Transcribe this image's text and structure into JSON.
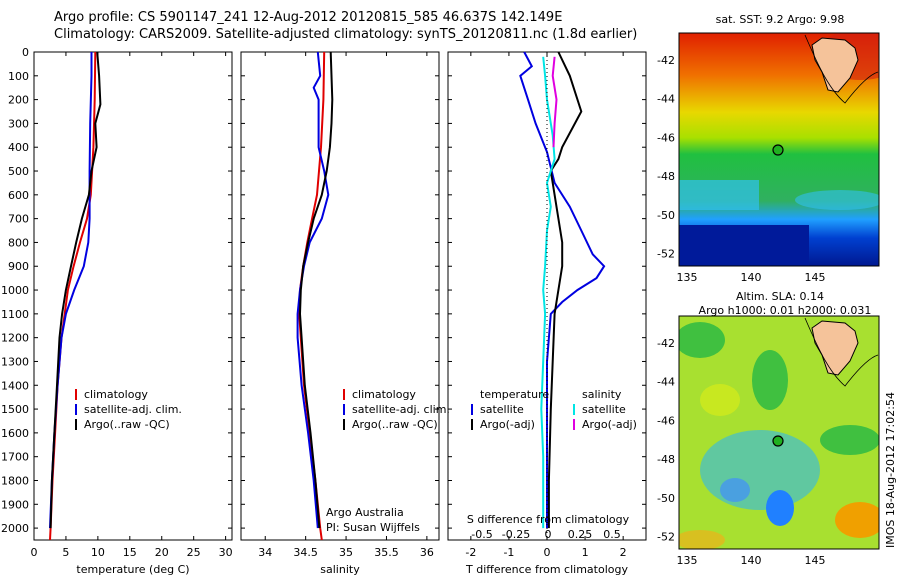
{
  "header": {
    "line1": "Argo profile: CS 5901147_241 12-Aug-2012 20120815_585 46.637S 142.149E",
    "line2": "Climatology: CARS2009. Satellite-adjusted climatology: synTS_20120811.nc (1.8d earlier)"
  },
  "colors": {
    "climatology": "#e00000",
    "satellite": "#0000e0",
    "argo": "#000000",
    "sat_sal": "#00e5e5",
    "argo_sal": "#e000e0"
  },
  "chart_data": [
    {
      "type": "line",
      "xlabel": "temperature (deg C)",
      "xlim": [
        0,
        31
      ],
      "ylim": [
        2050,
        0
      ],
      "xticks": [
        "0",
        "5",
        "10",
        "15",
        "20",
        "25",
        "30"
      ],
      "yticks": [
        "0",
        "100",
        "200",
        "300",
        "400",
        "500",
        "600",
        "700",
        "800",
        "900",
        "1000",
        "1100",
        "1200",
        "1300",
        "1400",
        "1500",
        "1600",
        "1700",
        "1800",
        "1900",
        "2000"
      ],
      "legend": [
        "climatology",
        "satellite-adj. clim.",
        "Argo(..raw -QC)"
      ],
      "series": [
        {
          "name": "climatology",
          "points": [
            [
              9.6,
              0
            ],
            [
              9.5,
              200
            ],
            [
              9.3,
              400
            ],
            [
              8.9,
              600
            ],
            [
              8.3,
              700
            ],
            [
              7.2,
              800
            ],
            [
              6.2,
              900
            ],
            [
              5.3,
              1000
            ],
            [
              4.8,
              1100
            ],
            [
              4.3,
              1200
            ],
            [
              3.7,
              1400
            ],
            [
              3.3,
              1600
            ],
            [
              2.9,
              1800
            ],
            [
              2.6,
              2000
            ],
            [
              2.5,
              2050
            ]
          ]
        },
        {
          "name": "satellite-adj. clim.",
          "points": [
            [
              9.0,
              0
            ],
            [
              9.0,
              100
            ],
            [
              8.8,
              300
            ],
            [
              8.7,
              500
            ],
            [
              8.7,
              700
            ],
            [
              8.5,
              800
            ],
            [
              7.8,
              900
            ],
            [
              6.3,
              1000
            ],
            [
              5.0,
              1100
            ],
            [
              4.3,
              1200
            ],
            [
              3.7,
              1400
            ],
            [
              3.2,
              1600
            ],
            [
              2.8,
              1800
            ],
            [
              2.5,
              2000
            ]
          ]
        },
        {
          "name": "Argo(..raw -QC)",
          "points": [
            [
              9.9,
              0
            ],
            [
              10.2,
              100
            ],
            [
              10.4,
              220
            ],
            [
              9.6,
              300
            ],
            [
              9.8,
              400
            ],
            [
              9.0,
              500
            ],
            [
              8.6,
              600
            ],
            [
              7.5,
              700
            ],
            [
              6.6,
              800
            ],
            [
              5.8,
              900
            ],
            [
              5.0,
              1000
            ],
            [
              4.4,
              1100
            ],
            [
              4.0,
              1200
            ],
            [
              3.6,
              1400
            ],
            [
              3.2,
              1600
            ],
            [
              2.8,
              1800
            ],
            [
              2.6,
              2000
            ]
          ]
        }
      ]
    },
    {
      "type": "line",
      "xlabel": "salinity",
      "xlim": [
        33.7,
        36.15
      ],
      "ylim": [
        2050,
        0
      ],
      "xticks": [
        "34",
        "34.5",
        "35",
        "35.5",
        "36"
      ],
      "legend": [
        "climatology",
        "satellite-adj. clim.",
        "Argo(..raw -QC)"
      ],
      "annotation": [
        "Argo Australia",
        "PI: Susan Wijffels"
      ],
      "series": [
        {
          "name": "climatology",
          "points": [
            [
              34.73,
              0
            ],
            [
              34.72,
              200
            ],
            [
              34.69,
              400
            ],
            [
              34.64,
              600
            ],
            [
              34.58,
              700
            ],
            [
              34.52,
              800
            ],
            [
              34.47,
              900
            ],
            [
              34.43,
              1000
            ],
            [
              34.42,
              1100
            ],
            [
              34.44,
              1200
            ],
            [
              34.48,
              1400
            ],
            [
              34.55,
              1600
            ],
            [
              34.62,
              1800
            ],
            [
              34.68,
              2000
            ],
            [
              34.7,
              2050
            ]
          ]
        },
        {
          "name": "satellite-adj. clim.",
          "points": [
            [
              34.65,
              0
            ],
            [
              34.68,
              100
            ],
            [
              34.6,
              150
            ],
            [
              34.66,
              200
            ],
            [
              34.66,
              400
            ],
            [
              34.73,
              500
            ],
            [
              34.78,
              600
            ],
            [
              34.7,
              700
            ],
            [
              34.55,
              800
            ],
            [
              34.48,
              900
            ],
            [
              34.43,
              1000
            ],
            [
              34.4,
              1100
            ],
            [
              34.4,
              1200
            ],
            [
              34.45,
              1400
            ],
            [
              34.53,
              1600
            ],
            [
              34.6,
              1800
            ],
            [
              34.65,
              2000
            ]
          ]
        },
        {
          "name": "Argo(..raw -QC)",
          "points": [
            [
              34.81,
              0
            ],
            [
              34.83,
              200
            ],
            [
              34.82,
              300
            ],
            [
              34.8,
              400
            ],
            [
              34.76,
              500
            ],
            [
              34.7,
              600
            ],
            [
              34.6,
              700
            ],
            [
              34.53,
              800
            ],
            [
              34.47,
              900
            ],
            [
              34.44,
              1000
            ],
            [
              34.43,
              1100
            ],
            [
              34.45,
              1200
            ],
            [
              34.49,
              1400
            ],
            [
              34.56,
              1600
            ],
            [
              34.62,
              1800
            ],
            [
              34.67,
              2000
            ]
          ]
        }
      ]
    },
    {
      "type": "line",
      "xlabel": "T difference from climatology",
      "title_bottom": "S difference from climatology",
      "xlim": [
        -2.6,
        2.6
      ],
      "ylim": [
        2050,
        0
      ],
      "xticks": [
        "-2",
        "-1",
        "0",
        "1",
        "2"
      ],
      "sticks": [
        "-0.5",
        "-0.25",
        "0",
        "0.25",
        "0.5"
      ],
      "legend_temperature": [
        "temperature",
        "satellite",
        "Argo(-adj)"
      ],
      "legend_salinity": [
        "salinity",
        "satellite",
        "Argo(-adj)"
      ],
      "series": [
        {
          "name": "temperature satellite",
          "points": [
            [
              -0.6,
              0
            ],
            [
              -0.4,
              60
            ],
            [
              -0.7,
              100
            ],
            [
              -0.5,
              200
            ],
            [
              -0.3,
              300
            ],
            [
              0.0,
              420
            ],
            [
              0.2,
              550
            ],
            [
              0.6,
              650
            ],
            [
              0.9,
              750
            ],
            [
              1.2,
              850
            ],
            [
              1.5,
              900
            ],
            [
              1.3,
              950
            ],
            [
              0.8,
              1000
            ],
            [
              0.4,
              1050
            ],
            [
              0.1,
              1100
            ],
            [
              0.0,
              1300
            ],
            [
              0.0,
              1600
            ],
            [
              0.0,
              2000
            ]
          ]
        },
        {
          "name": "temperature Argo(-adj)",
          "points": [
            [
              0.3,
              0
            ],
            [
              0.6,
              100
            ],
            [
              0.9,
              250
            ],
            [
              0.4,
              400
            ],
            [
              0.3,
              450
            ],
            [
              0.1,
              500
            ],
            [
              0.2,
              600
            ],
            [
              0.3,
              700
            ],
            [
              0.4,
              800
            ],
            [
              0.4,
              900
            ],
            [
              0.3,
              1000
            ],
            [
              0.2,
              1100
            ],
            [
              0.15,
              1300
            ],
            [
              0.1,
              1500
            ],
            [
              0.05,
              1800
            ],
            [
              0.05,
              2000
            ]
          ]
        },
        {
          "name": "salinity satellite",
          "points": [
            [
              -0.1,
              20
            ],
            [
              -0.05,
              100
            ],
            [
              0.0,
              200
            ],
            [
              0.15,
              350
            ],
            [
              0.2,
              450
            ],
            [
              0.0,
              550
            ],
            [
              0.1,
              650
            ],
            [
              0.0,
              750
            ],
            [
              -0.05,
              900
            ],
            [
              -0.1,
              1000
            ],
            [
              -0.05,
              1100
            ],
            [
              -0.1,
              1300
            ],
            [
              -0.15,
              1500
            ],
            [
              -0.1,
              1700
            ],
            [
              -0.1,
              2000
            ]
          ]
        },
        {
          "name": "salinity Argo(-adj)",
          "points": [
            [
              0.2,
              20
            ],
            [
              0.15,
              100
            ],
            [
              0.25,
              200
            ],
            [
              0.2,
              300
            ],
            [
              0.17,
              400
            ]
          ]
        }
      ]
    },
    {
      "type": "heatmap",
      "title": "sat. SST: 9.2 Argo: 9.98",
      "xticks": [
        "135",
        "140",
        "145"
      ],
      "yticks": [
        "-42",
        "-44",
        "-46",
        "-48",
        "-50",
        "-52"
      ]
    },
    {
      "type": "heatmap",
      "title": "Altim. SLA: 0.14",
      "subtitle": "Argo h1000: 0.01 h2000: 0.031",
      "xticks": [
        "135",
        "140",
        "145"
      ],
      "yticks": [
        "-42",
        "-44",
        "-46",
        "-48",
        "-50",
        "-52"
      ],
      "side_label": "IMOS 18-Aug-2012 17:02:54"
    }
  ]
}
